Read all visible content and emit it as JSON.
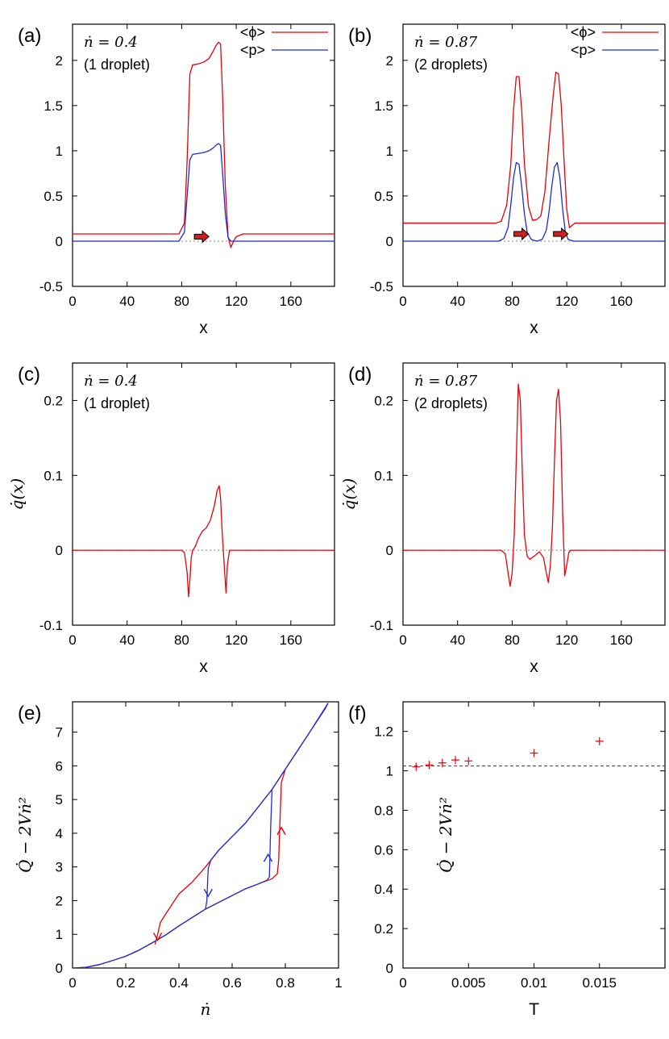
{
  "colors": {
    "red": "#e8000b",
    "blue": "#1f2bd1",
    "zero_line": "#888888",
    "arrow_fill": "#d11f1f"
  },
  "chart_data": [
    {
      "id": "a",
      "type": "line",
      "panel_label": "(a)",
      "annotation": [
        "ṅ = 0.4",
        "(1 droplet)"
      ],
      "xlabel": "x",
      "ylabel": "",
      "xlim": [
        0,
        192
      ],
      "ylim": [
        -0.5,
        2.4
      ],
      "xticks": [
        "0",
        "40",
        "80",
        "120",
        "160"
      ],
      "xtick_values": [
        0,
        40,
        80,
        120,
        160
      ],
      "yticks": [
        "-0.5",
        "0",
        "0.5",
        "1",
        "1.5",
        "2"
      ],
      "ytick_values": [
        -0.5,
        0,
        0.5,
        1,
        1.5,
        2
      ],
      "legend": "top-right",
      "zero_line": true,
      "arrows": [
        {
          "x": 94,
          "y": 0.05
        }
      ],
      "series": [
        {
          "name": "<ϕ>",
          "color": "red",
          "x": [
            0,
            78,
            82,
            84,
            86,
            88,
            92,
            96,
            100,
            103,
            105,
            107,
            108.5,
            110,
            112,
            114,
            116,
            118,
            120,
            125,
            130,
            192
          ],
          "y": [
            0.08,
            0.08,
            0.2,
            0.9,
            1.85,
            1.95,
            1.96,
            1.98,
            2.02,
            2.1,
            2.16,
            2.2,
            2.18,
            1.6,
            0.6,
            0.05,
            -0.07,
            0.0,
            0.05,
            0.08,
            0.08,
            0.08
          ]
        },
        {
          "name": "<p>",
          "color": "blue",
          "x": [
            0,
            78,
            82,
            84,
            86,
            88,
            92,
            96,
            100,
            103,
            105,
            107,
            108.5,
            110,
            112,
            114,
            116,
            118,
            192
          ],
          "y": [
            0.0,
            0.0,
            0.1,
            0.5,
            0.9,
            0.96,
            0.97,
            0.98,
            1.0,
            1.03,
            1.06,
            1.08,
            1.06,
            0.75,
            0.3,
            0.04,
            0.0,
            0.0,
            0.0
          ]
        }
      ]
    },
    {
      "id": "b",
      "type": "line",
      "panel_label": "(b)",
      "annotation": [
        "ṅ = 0.87",
        "(2 droplets)"
      ],
      "xlabel": "x",
      "ylabel": "",
      "xlim": [
        0,
        192
      ],
      "ylim": [
        -0.5,
        2.4
      ],
      "xticks": [
        "0",
        "40",
        "80",
        "120",
        "160"
      ],
      "xtick_values": [
        0,
        40,
        80,
        120,
        160
      ],
      "yticks": [
        "-0.5",
        "0",
        "0.5",
        "1",
        "1.5",
        "2"
      ],
      "ytick_values": [
        -0.5,
        0,
        0.5,
        1,
        1.5,
        2
      ],
      "legend": "top-right",
      "zero_line": true,
      "arrows": [
        {
          "x": 86,
          "y": 0.08
        },
        {
          "x": 115,
          "y": 0.08
        }
      ],
      "series": [
        {
          "name": "<ϕ>",
          "color": "red",
          "x": [
            0,
            68,
            72,
            76,
            79,
            81,
            83,
            85,
            87,
            89,
            92,
            95,
            98,
            101,
            104,
            107,
            110,
            112,
            114,
            116,
            118,
            120,
            122,
            126,
            192
          ],
          "y": [
            0.2,
            0.2,
            0.22,
            0.4,
            0.85,
            1.45,
            1.82,
            1.82,
            1.45,
            0.85,
            0.38,
            0.23,
            0.24,
            0.28,
            0.55,
            1.1,
            1.6,
            1.87,
            1.85,
            1.5,
            0.9,
            0.35,
            0.15,
            0.2,
            0.2
          ]
        },
        {
          "name": "<p>",
          "color": "blue",
          "x": [
            0,
            70,
            74,
            77,
            79,
            81,
            83,
            85,
            87,
            89,
            91,
            94,
            98,
            102,
            105,
            107,
            109,
            111,
            113,
            115,
            117,
            119,
            121,
            125,
            192
          ],
          "y": [
            0.0,
            0.0,
            0.03,
            0.15,
            0.4,
            0.7,
            0.87,
            0.85,
            0.6,
            0.3,
            0.1,
            0.02,
            0.0,
            0.02,
            0.12,
            0.32,
            0.6,
            0.82,
            0.87,
            0.7,
            0.35,
            0.1,
            0.02,
            0.0,
            0.0
          ]
        }
      ]
    },
    {
      "id": "c",
      "type": "line",
      "panel_label": "(c)",
      "annotation": [
        "ṅ = 0.4",
        "(1 droplet)"
      ],
      "xlabel": "x",
      "ylabel": "q̇(x)",
      "xlim": [
        0,
        192
      ],
      "ylim": [
        -0.1,
        0.25
      ],
      "xticks": [
        "0",
        "40",
        "80",
        "120",
        "160"
      ],
      "xtick_values": [
        0,
        40,
        80,
        120,
        160
      ],
      "yticks": [
        "-0.1",
        "0",
        "0.1",
        "0.2"
      ],
      "ytick_values": [
        -0.1,
        0,
        0.1,
        0.2
      ],
      "zero_line": true,
      "series": [
        {
          "name": "",
          "color": "red",
          "x": [
            0,
            80,
            82,
            84,
            85,
            86,
            87,
            88,
            90,
            92,
            95,
            98,
            101,
            104,
            106,
            107.5,
            108.5,
            109.5,
            110.5,
            111.5,
            112.5,
            113.5,
            115,
            192
          ],
          "y": [
            0.0,
            0.0,
            -0.003,
            -0.03,
            -0.062,
            -0.04,
            -0.01,
            0.0,
            0.005,
            0.015,
            0.025,
            0.03,
            0.04,
            0.06,
            0.08,
            0.086,
            0.07,
            0.03,
            0.0,
            -0.03,
            -0.057,
            -0.02,
            0.0,
            0.0
          ]
        }
      ]
    },
    {
      "id": "d",
      "type": "line",
      "panel_label": "(d)",
      "annotation": [
        "ṅ = 0.87",
        "(2 droplets)"
      ],
      "xlabel": "x",
      "ylabel": "q̇(x)",
      "xlim": [
        0,
        192
      ],
      "ylim": [
        -0.1,
        0.25
      ],
      "xticks": [
        "0",
        "40",
        "80",
        "120",
        "160"
      ],
      "xtick_values": [
        0,
        40,
        80,
        120,
        160
      ],
      "yticks": [
        "-0.1",
        "0",
        "0.1",
        "0.2"
      ],
      "ytick_values": [
        -0.1,
        0,
        0.1,
        0.2
      ],
      "zero_line": true,
      "series": [
        {
          "name": "",
          "color": "red",
          "x": [
            0,
            72,
            75,
            77,
            78.5,
            80,
            81.5,
            83,
            84.5,
            86,
            87.5,
            89,
            91,
            93,
            96,
            100,
            103,
            105,
            106.5,
            108,
            109.5,
            111,
            112.5,
            114,
            115.5,
            117,
            118.5,
            120,
            121.5,
            123,
            192
          ],
          "y": [
            0.0,
            0.0,
            -0.005,
            -0.03,
            -0.048,
            -0.03,
            0.02,
            0.12,
            0.222,
            0.2,
            0.1,
            0.02,
            -0.008,
            -0.012,
            -0.008,
            -0.002,
            -0.01,
            -0.03,
            -0.043,
            -0.02,
            0.03,
            0.12,
            0.2,
            0.215,
            0.17,
            0.05,
            -0.034,
            -0.02,
            -0.003,
            0.0,
            0.0
          ]
        }
      ]
    },
    {
      "id": "e",
      "type": "line",
      "panel_label": "(e)",
      "xlabel": "ṅ",
      "ylabel": "Q̇ − 2Vṅ²",
      "xlim": [
        0,
        1
      ],
      "ylim": [
        0,
        7.9
      ],
      "xticks": [
        "0",
        "0.2",
        "0.4",
        "0.6",
        "0.8",
        "1"
      ],
      "xtick_values": [
        0,
        0.2,
        0.4,
        0.6,
        0.8,
        1
      ],
      "yticks": [
        "0",
        "1",
        "2",
        "3",
        "4",
        "5",
        "6",
        "7"
      ],
      "ytick_values": [
        0,
        1,
        2,
        3,
        4,
        5,
        6,
        7
      ],
      "zero_line": false,
      "markers": [
        {
          "type": "arrow-down",
          "color": "red",
          "x": 0.32,
          "y": 0.9
        },
        {
          "type": "arrow-down",
          "color": "blue",
          "x": 0.51,
          "y": 2.2
        },
        {
          "type": "arrow-up",
          "color": "blue",
          "x": 0.735,
          "y": 3.3
        },
        {
          "type": "arrow-up",
          "color": "red",
          "x": 0.785,
          "y": 4.1
        }
      ],
      "series": [
        {
          "name": "",
          "color": "red",
          "x": [
            0,
            0.05,
            0.1,
            0.15,
            0.2,
            0.25,
            0.3,
            0.35,
            0.4,
            0.45,
            0.5,
            0.55,
            0.6,
            0.65,
            0.7,
            0.75,
            0.77,
            0.775,
            0.78,
            0.785,
            0.8,
            0.85,
            0.9,
            0.95,
            0.96,
            0.9,
            0.85,
            0.8,
            0.75,
            0.7,
            0.65,
            0.6,
            0.55,
            0.5,
            0.45,
            0.4,
            0.35,
            0.33,
            0.32,
            0.31
          ],
          "y": [
            0,
            0.02,
            0.1,
            0.22,
            0.35,
            0.53,
            0.75,
            0.98,
            1.25,
            1.5,
            1.75,
            1.95,
            2.15,
            2.35,
            2.5,
            2.65,
            2.8,
            3.2,
            4.4,
            5.5,
            5.9,
            6.5,
            7.1,
            7.7,
            7.85,
            7.1,
            6.5,
            5.9,
            5.3,
            4.8,
            4.3,
            3.9,
            3.5,
            3.0,
            2.55,
            2.2,
            1.6,
            1.35,
            1.0,
            0.7
          ]
        },
        {
          "name": "",
          "color": "blue",
          "x": [
            0,
            0.05,
            0.1,
            0.15,
            0.2,
            0.25,
            0.3,
            0.35,
            0.4,
            0.45,
            0.5,
            0.55,
            0.6,
            0.65,
            0.7,
            0.73,
            0.74,
            0.745,
            0.75,
            0.8,
            0.85,
            0.9,
            0.95,
            0.96,
            0.9,
            0.85,
            0.8,
            0.75,
            0.7,
            0.65,
            0.6,
            0.55,
            0.52,
            0.51,
            0.505,
            0.5,
            0.45,
            0.4,
            0.35,
            0.3,
            0.25,
            0.2,
            0.15,
            0.1,
            0.05,
            0
          ],
          "y": [
            0,
            0.02,
            0.1,
            0.22,
            0.35,
            0.53,
            0.75,
            0.98,
            1.25,
            1.5,
            1.75,
            1.95,
            2.15,
            2.35,
            2.5,
            2.6,
            2.7,
            4.2,
            5.3,
            5.9,
            6.5,
            7.1,
            7.7,
            7.85,
            7.1,
            6.5,
            5.9,
            5.3,
            4.8,
            4.3,
            3.9,
            3.5,
            3.2,
            2.95,
            2.0,
            1.75,
            1.5,
            1.25,
            0.98,
            0.75,
            0.53,
            0.35,
            0.22,
            0.1,
            0.02,
            0
          ]
        }
      ]
    },
    {
      "id": "f",
      "type": "scatter",
      "panel_label": "(f)",
      "xlabel": "T",
      "ylabel": "Q̇ − 2Vṅ²",
      "xlim": [
        0,
        0.02
      ],
      "ylim": [
        0,
        1.35
      ],
      "xticks": [
        "0",
        "0.005",
        "0.01",
        "0.015"
      ],
      "xtick_values": [
        0,
        0.005,
        0.01,
        0.015
      ],
      "yticks": [
        "0",
        "0.2",
        "0.4",
        "0.6",
        "0.8",
        "1",
        "1.2"
      ],
      "ytick_values": [
        0,
        0.2,
        0.4,
        0.6,
        0.8,
        1,
        1.2
      ],
      "zero_line": false,
      "hline": {
        "y": 1.025,
        "color": "red",
        "dashed": true
      },
      "series": [
        {
          "name": "",
          "color": "red",
          "marker": "+",
          "x": [
            0.001,
            0.002,
            0.003,
            0.004,
            0.005,
            0.01,
            0.015
          ],
          "y": [
            1.02,
            1.03,
            1.04,
            1.055,
            1.05,
            1.09,
            1.15
          ]
        }
      ]
    }
  ]
}
